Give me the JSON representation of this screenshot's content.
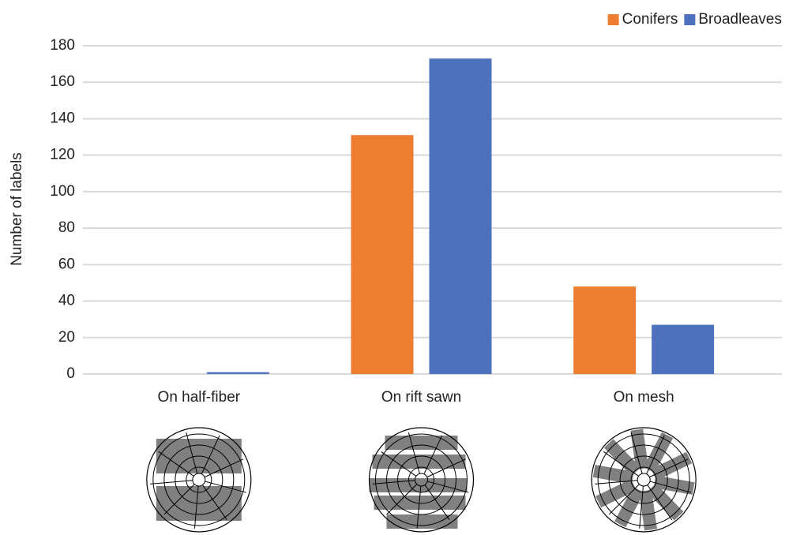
{
  "chart_data": {
    "type": "bar",
    "y_label": "Number of labels",
    "categories": [
      "On half-fiber",
      "On rift sawn",
      "On mesh"
    ],
    "series": [
      {
        "name": "Conifers",
        "color": "#ED7D31",
        "values": [
          0,
          131,
          48
        ]
      },
      {
        "name": "Broadleaves",
        "color": "#4E71BE",
        "values": [
          1,
          173,
          27
        ]
      }
    ],
    "ylim": [
      0,
      180
    ],
    "yticks": [
      0,
      20,
      40,
      60,
      80,
      100,
      120,
      140,
      160,
      180
    ],
    "grid": true,
    "legend": "top-right"
  }
}
